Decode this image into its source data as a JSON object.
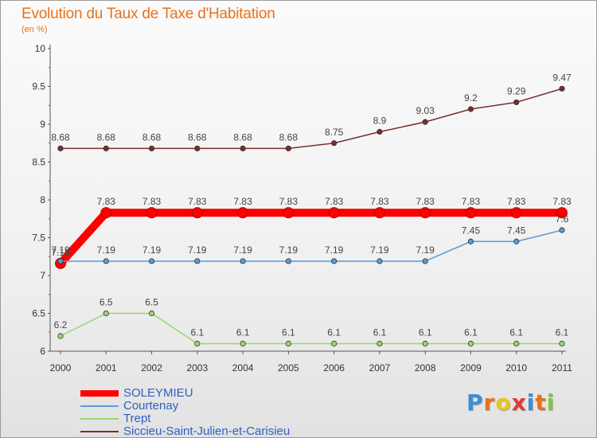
{
  "header": {
    "title": "Evolution du Taux de Taxe d'Habitation",
    "subtitle": "(en %)"
  },
  "logo": {
    "text": "Proxiti",
    "letter_colors": [
      "#3b8fd6",
      "#e8711a",
      "#e8c51a",
      "#e03b3b",
      "#3b8fd6",
      "#e8711a",
      "#7ac943"
    ]
  },
  "chart_data": {
    "type": "line",
    "title": "Evolution du Taux de Taxe d'Habitation",
    "ylabel": "(en %)",
    "xlabel": "",
    "x": [
      "2000",
      "2001",
      "2002",
      "2003",
      "2004",
      "2005",
      "2006",
      "2007",
      "2008",
      "2009",
      "2010",
      "2011"
    ],
    "ylim": [
      6,
      10
    ],
    "yticks": [
      "6",
      "6.5",
      "7",
      "7.5",
      "8",
      "8.5",
      "9",
      "9.5",
      "10"
    ],
    "grid": false,
    "legend_position": "bottom-left",
    "series": [
      {
        "name": "SOLEYMIEU",
        "color": "#ff0000",
        "emphasis": "thick",
        "values": [
          7.16,
          7.83,
          7.83,
          7.83,
          7.83,
          7.83,
          7.83,
          7.83,
          7.83,
          7.83,
          7.83,
          7.83
        ],
        "labels": [
          "7.16",
          "7.83",
          "7.83",
          "7.83",
          "7.83",
          "7.83",
          "7.83",
          "7.83",
          "7.83",
          "7.83",
          "7.83",
          "7.83"
        ]
      },
      {
        "name": "Courtenay",
        "color": "#5b9bd5",
        "values": [
          7.19,
          7.19,
          7.19,
          7.19,
          7.19,
          7.19,
          7.19,
          7.19,
          7.19,
          7.45,
          7.45,
          7.6
        ],
        "labels": [
          "7.19",
          "7.19",
          "7.19",
          "7.19",
          "7.19",
          "7.19",
          "7.19",
          "7.19",
          "7.19",
          "7.45",
          "7.45",
          "7.6"
        ]
      },
      {
        "name": "Trept",
        "color": "#9ad66f",
        "values": [
          6.2,
          6.5,
          6.5,
          6.1,
          6.1,
          6.1,
          6.1,
          6.1,
          6.1,
          6.1,
          6.1,
          6.1
        ],
        "labels": [
          "6.2",
          "6.5",
          "6.5",
          "6.1",
          "6.1",
          "6.1",
          "6.1",
          "6.1",
          "6.1",
          "6.1",
          "6.1",
          "6.1"
        ]
      },
      {
        "name": "Siccieu-Saint-Julien-et-Carisieu",
        "color": "#7b2e2e",
        "values": [
          8.68,
          8.68,
          8.68,
          8.68,
          8.68,
          8.68,
          8.75,
          8.9,
          9.03,
          9.2,
          9.29,
          9.47
        ],
        "labels": [
          "8.68",
          "8.68",
          "8.68",
          "8.68",
          "8.68",
          "8.68",
          "8.75",
          "8.9",
          "9.03",
          "9.2",
          "9.29",
          "9.47"
        ]
      }
    ]
  }
}
